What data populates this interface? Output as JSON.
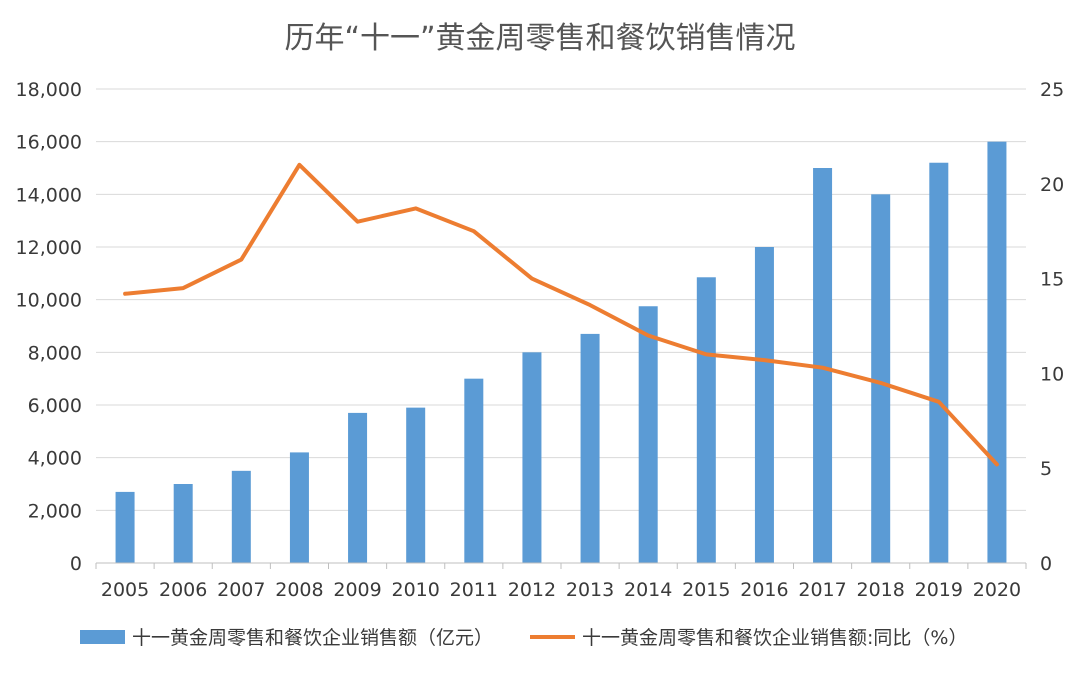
{
  "chart_data": {
    "type": "bar+line",
    "title": "历年“十一”黄金周零售和餐饮销售情况",
    "categories": [
      "2005",
      "2006",
      "2007",
      "2008",
      "2009",
      "2010",
      "2011",
      "2012",
      "2013",
      "2014",
      "2015",
      "2016",
      "2017",
      "2018",
      "2019",
      "2020"
    ],
    "series": [
      {
        "name": "十一黄金周零售和餐饮企业销售额（亿元）",
        "type": "bar",
        "axis": "left",
        "color": "#5b9bd5",
        "values": [
          2700,
          3000,
          3500,
          4200,
          5700,
          5900,
          7000,
          8000,
          8700,
          9750,
          10850,
          12000,
          15000,
          14000,
          15200,
          16000
        ]
      },
      {
        "name": "十一黄金周零售和餐饮企业销售额:同比（%）",
        "type": "line",
        "axis": "right",
        "color": "#ed7d31",
        "values": [
          14.2,
          14.5,
          16.0,
          21.0,
          18.0,
          18.7,
          17.5,
          15.0,
          13.6,
          12.0,
          11.0,
          10.7,
          10.3,
          9.5,
          8.5,
          5.2
        ]
      }
    ],
    "y_left": {
      "min": 0,
      "max": 18000,
      "step": 2000,
      "tick_labels": [
        "0",
        "2,000",
        "4,000",
        "6,000",
        "8,000",
        "10,000",
        "12,000",
        "14,000",
        "16,000",
        "18,000"
      ]
    },
    "y_right": {
      "min": 0,
      "max": 25,
      "step": 5,
      "tick_labels": [
        "0",
        "5",
        "10",
        "15",
        "20",
        "25"
      ]
    },
    "grid": true,
    "legend": "bottom"
  }
}
